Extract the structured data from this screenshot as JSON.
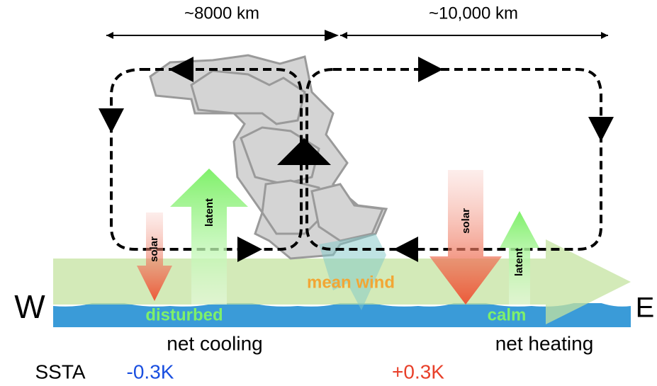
{
  "scales": {
    "west_span": "~8000 km",
    "east_span": "~10,000 km"
  },
  "fluxes": {
    "west_solar": "solar",
    "west_latent": "latent",
    "east_solar": "solar",
    "east_latent": "latent"
  },
  "wind": "mean wind",
  "directions": {
    "west": "W",
    "east": "E"
  },
  "sea_state": {
    "west": "disturbed",
    "east": "calm"
  },
  "net_flux": {
    "west": "net cooling",
    "east": "net heating"
  },
  "ssta": {
    "label": "SSTA",
    "west": "-0.3K",
    "east": "+0.3K"
  }
}
